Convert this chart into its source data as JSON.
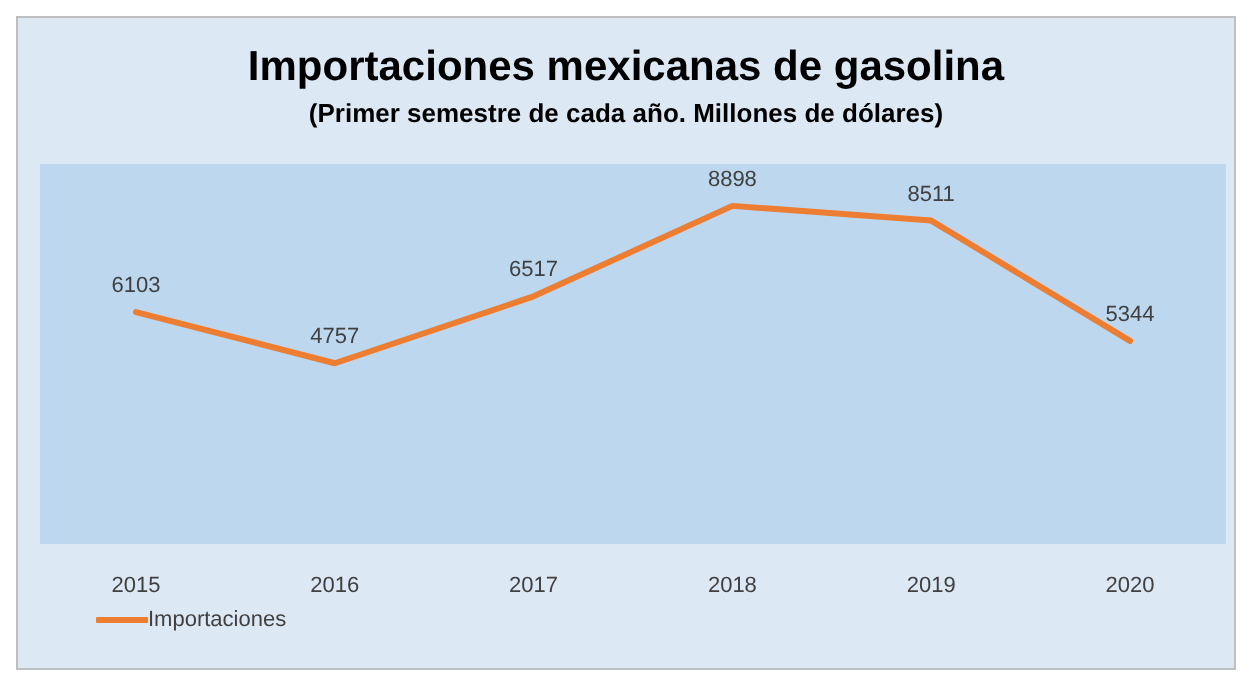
{
  "chart_data": {
    "type": "line",
    "title": "Importaciones mexicanas de gasolina",
    "subtitle": "(Primer semestre de cada año. Millones de dólares)",
    "categories": [
      "2015",
      "2016",
      "2017",
      "2018",
      "2019",
      "2020"
    ],
    "series": [
      {
        "name": "Importaciones",
        "color": "#ed7d31",
        "values": [
          6103,
          4757,
          6517,
          8898,
          8511,
          5344
        ]
      }
    ],
    "ylim": [
      0,
      10000
    ],
    "data_labels": true,
    "legend": "bottom left",
    "marker": "none"
  }
}
